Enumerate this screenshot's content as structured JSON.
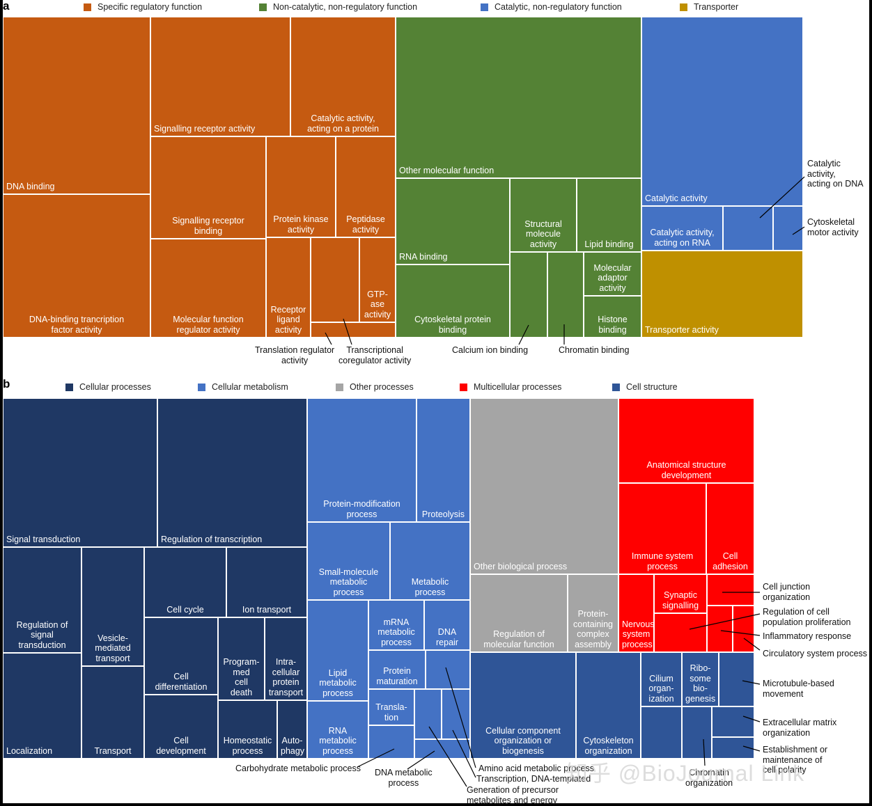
{
  "colors": {
    "specific_regulatory": "#c55a11",
    "non_catalytic": "#548235",
    "catalytic": "#4472c4",
    "transporter": "#bf9000",
    "cellular_processes": "#1f3864",
    "cellular_metabolism": "#4472c4",
    "other_processes": "#a5a5a5",
    "multicellular": "#ff0000",
    "cell_structure": "#2f5597"
  },
  "panel_a": {
    "letter": "a",
    "legend": [
      {
        "label": "Specific regulatory function",
        "color_key": "specific_regulatory"
      },
      {
        "label": "Non-catalytic, non-regulatory function",
        "color_key": "non_catalytic"
      },
      {
        "label": "Catalytic, non-regulatory function",
        "color_key": "catalytic"
      },
      {
        "label": "Transporter",
        "color_key": "transporter"
      }
    ],
    "tiles": [
      {
        "label": "DNA binding",
        "category": "specific_regulatory"
      },
      {
        "label": "DNA-binding trancription\nfactor activity",
        "category": "specific_regulatory"
      },
      {
        "label": "Signalling receptor activity",
        "category": "specific_regulatory"
      },
      {
        "label": "Catalytic activity,\nacting on a protein",
        "category": "specific_regulatory"
      },
      {
        "label": "Signalling receptor\nbinding",
        "category": "specific_regulatory"
      },
      {
        "label": "Protein kinase\nactivity",
        "category": "specific_regulatory"
      },
      {
        "label": "Peptidase\nactivity",
        "category": "specific_regulatory"
      },
      {
        "label": "Molecular function\nregulator activity",
        "category": "specific_regulatory"
      },
      {
        "label": "Receptor\nligand\nactivity",
        "category": "specific_regulatory"
      },
      {
        "label": "",
        "category": "specific_regulatory",
        "callout": "Transcriptional coregulator activity"
      },
      {
        "label": "GTP-\nase\nactivity",
        "category": "specific_regulatory"
      },
      {
        "label": "",
        "category": "specific_regulatory",
        "callout": "Translation regulator activity"
      },
      {
        "label": "Other molecular function",
        "category": "non_catalytic"
      },
      {
        "label": "RNA binding",
        "category": "non_catalytic"
      },
      {
        "label": "Structural\nmolecule\nactivity",
        "category": "non_catalytic"
      },
      {
        "label": "Lipid binding",
        "category": "non_catalytic"
      },
      {
        "label": "Cytoskeletal protein\nbinding",
        "category": "non_catalytic"
      },
      {
        "label": "",
        "category": "non_catalytic",
        "callout": "Calcium ion binding"
      },
      {
        "label": "",
        "category": "non_catalytic",
        "callout": "Chromatin binding"
      },
      {
        "label": "Molecular\nadaptor\nactivity",
        "category": "non_catalytic"
      },
      {
        "label": "Histone\nbinding",
        "category": "non_catalytic"
      },
      {
        "label": "Catalytic activity",
        "category": "catalytic"
      },
      {
        "label": "Catalytic activity,\nacting on RNA",
        "category": "catalytic"
      },
      {
        "label": "",
        "category": "catalytic",
        "callout": "Catalytic activity, acting on DNA"
      },
      {
        "label": "",
        "category": "catalytic",
        "callout": "Cytoskeletal motor activity"
      },
      {
        "label": "Transporter activity",
        "category": "transporter"
      }
    ],
    "callouts": [
      {
        "text": "Translation regulator\nactivity"
      },
      {
        "text": "Transcriptional\ncoregulator activity"
      },
      {
        "text": "Calcium ion binding"
      },
      {
        "text": "Chromatin binding"
      },
      {
        "text": "Catalytic activity,\nacting on DNA"
      },
      {
        "text": "Cytoskeletal\nmotor activity"
      }
    ]
  },
  "panel_b": {
    "letter": "b",
    "legend": [
      {
        "label": "Cellular processes",
        "color_key": "cellular_processes"
      },
      {
        "label": "Cellular metabolism",
        "color_key": "cellular_metabolism"
      },
      {
        "label": "Other processes",
        "color_key": "other_processes"
      },
      {
        "label": "Multicellular processes",
        "color_key": "multicellular"
      },
      {
        "label": "Cell structure",
        "color_key": "cell_structure"
      }
    ],
    "tiles": [
      {
        "label": "Signal transduction",
        "category": "cellular_processes"
      },
      {
        "label": "Regulation of transcription",
        "category": "cellular_processes"
      },
      {
        "label": "Regulation of\nsignal\ntransduction",
        "category": "cellular_processes"
      },
      {
        "label": "Localization",
        "category": "cellular_processes"
      },
      {
        "label": "Vesicle-\nmediated\ntransport",
        "category": "cellular_processes"
      },
      {
        "label": "Transport",
        "category": "cellular_processes"
      },
      {
        "label": "Cell cycle",
        "category": "cellular_processes"
      },
      {
        "label": "Ion transport",
        "category": "cellular_processes"
      },
      {
        "label": "Cell\ndifferentiation",
        "category": "cellular_processes"
      },
      {
        "label": "Program-\nmed\ncell\ndeath",
        "category": "cellular_processes"
      },
      {
        "label": "Intra-\ncellular\nprotein\ntransport",
        "category": "cellular_processes"
      },
      {
        "label": "Cell\ndevelopment",
        "category": "cellular_processes"
      },
      {
        "label": "Homeostatic\nprocess",
        "category": "cellular_processes"
      },
      {
        "label": "Auto-\nphagy",
        "category": "cellular_processes"
      },
      {
        "label": "Protein-modification\nprocess",
        "category": "cellular_metabolism"
      },
      {
        "label": "Proteolysis",
        "category": "cellular_metabolism"
      },
      {
        "label": "Small-molecule\nmetabolic\nprocess",
        "category": "cellular_metabolism"
      },
      {
        "label": "Metabolic\nprocess",
        "category": "cellular_metabolism"
      },
      {
        "label": "Lipid\nmetabolic\nprocess",
        "category": "cellular_metabolism"
      },
      {
        "label": "mRNA\nmetabolic\nprocess",
        "category": "cellular_metabolism"
      },
      {
        "label": "DNA\nrepair",
        "category": "cellular_metabolism"
      },
      {
        "label": "Protein\nmaturation",
        "category": "cellular_metabolism"
      },
      {
        "label": "",
        "category": "cellular_metabolism",
        "callout": "Amino acid metabolic process"
      },
      {
        "label": "Transla-\ntion",
        "category": "cellular_metabolism"
      },
      {
        "label": "RNA\nmetabolic\nprocess",
        "category": "cellular_metabolism"
      },
      {
        "label": "",
        "category": "cellular_metabolism",
        "callout": "Carbohydrate metabolic process"
      },
      {
        "label": "",
        "category": "cellular_metabolism",
        "callout": "Generation of precursor metabolites and energy"
      },
      {
        "label": "",
        "category": "cellular_metabolism",
        "callout": "Transcription, DNA-templated"
      },
      {
        "label": "",
        "category": "cellular_metabolism",
        "callout": "DNA metabolic process"
      },
      {
        "label": "Other biological process",
        "category": "other_processes"
      },
      {
        "label": "Regulation of\nmolecular function",
        "category": "other_processes"
      },
      {
        "label": "Protein-\ncontaining\ncomplex\nassembly",
        "category": "other_processes"
      },
      {
        "label": "Anatomical structure\ndevelopment",
        "category": "multicellular"
      },
      {
        "label": "Immune system\nprocess",
        "category": "multicellular"
      },
      {
        "label": "Cell\nadhesion",
        "category": "multicellular"
      },
      {
        "label": "Nervous\nsystem\nprocess",
        "category": "multicellular"
      },
      {
        "label": "Synaptic\nsignalling",
        "category": "multicellular"
      },
      {
        "label": "",
        "category": "multicellular",
        "callout": "Cell junction organization"
      },
      {
        "label": "",
        "category": "multicellular",
        "callout": "Regulation of cell population proliferation"
      },
      {
        "label": "",
        "category": "multicellular",
        "callout": "Inflammatory response"
      },
      {
        "label": "",
        "category": "multicellular",
        "callout": "Circulatory system process"
      },
      {
        "label": "Cellular component\norganization or\nbiogenesis",
        "category": "cell_structure"
      },
      {
        "label": "Cytoskeleton\norganization",
        "category": "cell_structure"
      },
      {
        "label": "Cilium\norgan-\nization",
        "category": "cell_structure"
      },
      {
        "label": "Ribo-\nsome\nbio-\ngenesis",
        "category": "cell_structure"
      },
      {
        "label": "",
        "category": "cell_structure",
        "callout": "Microtubule-based movement"
      },
      {
        "label": "",
        "category": "cell_structure"
      },
      {
        "label": "",
        "category": "cell_structure",
        "callout": "Chromatin organization"
      },
      {
        "label": "",
        "category": "cell_structure",
        "callout": "Extracellular matrix organization"
      },
      {
        "label": "",
        "category": "cell_structure",
        "callout": "Establishment or maintenance of cell polarity"
      }
    ],
    "callouts": [
      {
        "text": "Carbohydrate metabolic process"
      },
      {
        "text": "DNA metabolic\nprocess"
      },
      {
        "text": "Amino acid metabolic process"
      },
      {
        "text": "Transcription, DNA-templated"
      },
      {
        "text": "Generation of precursor\nmetabolites and energy"
      },
      {
        "text": "Cell junction\norganization"
      },
      {
        "text": "Regulation of cell\npopulation proliferation"
      },
      {
        "text": "Inflammatory response"
      },
      {
        "text": "Circulatory system process"
      },
      {
        "text": "Microtubule-based\nmovement"
      },
      {
        "text": "Extracellular matrix\norganization"
      },
      {
        "text": "Establishment or\nmaintenance of\ncell polarity"
      },
      {
        "text": "Chromatin\norganization"
      }
    ]
  },
  "watermark": "知乎 @BioJournal Link"
}
